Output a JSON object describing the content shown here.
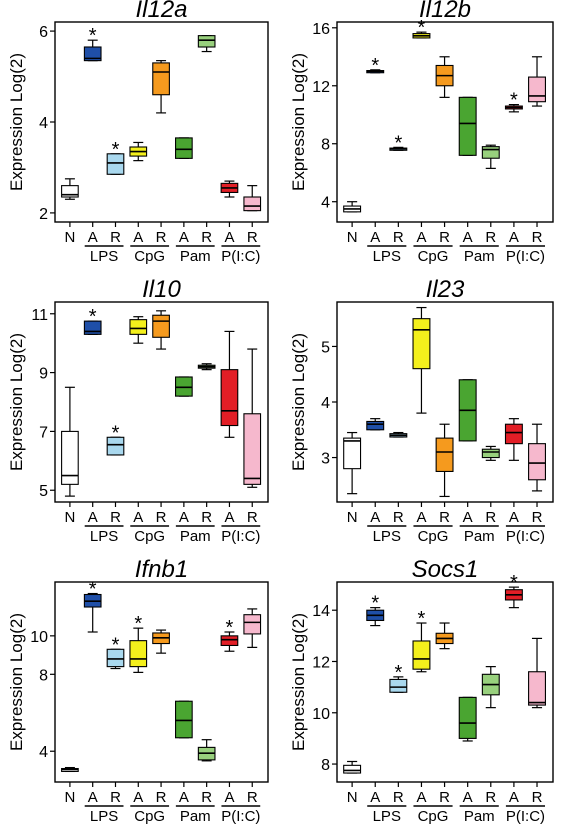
{
  "y_axis_label": "Expression Log(2)",
  "x_axis": {
    "categories": [
      "N",
      "A",
      "R",
      "A",
      "R",
      "A",
      "R",
      "A",
      "R"
    ],
    "groups": [
      "LPS",
      "CpG",
      "Pam",
      "P(I:C)"
    ]
  },
  "colors": {
    "N": "#ffffff",
    "LPS_A": "#1f4fa8",
    "LPS_R": "#a9d8ee",
    "CpG_A": "#f4f01c",
    "CpG_R": "#f59a1e",
    "Pam_A": "#4aa531",
    "Pam_R": "#98d07d",
    "PIC_A": "#e21e26",
    "PIC_R": "#f6b8cd"
  },
  "chart_data": [
    {
      "type": "box",
      "title": "Il12a",
      "ylabel": "Expression Log(2)",
      "yticks": [
        2,
        4,
        6
      ],
      "ylim": [
        1.8,
        6.2
      ],
      "categories": [
        "N",
        "LPS A",
        "LPS R",
        "CpG A",
        "CpG R",
        "Pam A",
        "Pam R",
        "P(I:C) A",
        "P(I:C) R"
      ],
      "boxes": [
        {
          "min": 2.3,
          "q1": 2.35,
          "median": 2.4,
          "q3": 2.6,
          "max": 2.75
        },
        {
          "min": 5.35,
          "q1": 5.35,
          "median": 5.4,
          "q3": 5.65,
          "max": 5.8
        },
        {
          "min": 2.85,
          "q1": 2.85,
          "median": 3.1,
          "q3": 3.3,
          "max": 3.3
        },
        {
          "min": 3.15,
          "q1": 3.25,
          "median": 3.35,
          "q3": 3.45,
          "max": 3.55
        },
        {
          "min": 4.2,
          "q1": 4.6,
          "median": 5.1,
          "q3": 5.3,
          "max": 5.35
        },
        {
          "min": 3.2,
          "q1": 3.2,
          "median": 3.4,
          "q3": 3.65,
          "max": 3.65
        },
        {
          "min": 5.55,
          "q1": 5.65,
          "median": 5.8,
          "q3": 5.9,
          "max": 5.9
        },
        {
          "min": 2.35,
          "q1": 2.45,
          "median": 2.55,
          "q3": 2.65,
          "max": 2.7
        },
        {
          "min": 2.05,
          "q1": 2.05,
          "median": 2.15,
          "q3": 2.35,
          "max": 2.6
        }
      ],
      "significant": [
        "LPS A",
        "LPS R"
      ]
    },
    {
      "type": "box",
      "title": "Il12b",
      "ylabel": "Expression Log(2)",
      "yticks": [
        4,
        8,
        12,
        16
      ],
      "ylim": [
        2.6,
        16.4
      ],
      "categories": [
        "N",
        "LPS A",
        "LPS R",
        "CpG A",
        "CpG R",
        "Pam A",
        "Pam R",
        "P(I:C) A",
        "P(I:C) R"
      ],
      "boxes": [
        {
          "min": 3.3,
          "q1": 3.3,
          "median": 3.5,
          "q3": 3.7,
          "max": 4.0
        },
        {
          "min": 12.9,
          "q1": 12.9,
          "median": 13.0,
          "q3": 13.05,
          "max": 13.1
        },
        {
          "min": 7.55,
          "q1": 7.55,
          "median": 7.65,
          "q3": 7.7,
          "max": 7.75
        },
        {
          "min": 15.3,
          "q1": 15.3,
          "median": 15.45,
          "q3": 15.6,
          "max": 15.7
        },
        {
          "min": 11.2,
          "q1": 12.0,
          "median": 12.7,
          "q3": 13.4,
          "max": 14.0
        },
        {
          "min": 7.2,
          "q1": 7.2,
          "median": 9.4,
          "q3": 11.2,
          "max": 11.2
        },
        {
          "min": 6.3,
          "q1": 7.0,
          "median": 7.6,
          "q3": 7.8,
          "max": 7.9
        },
        {
          "min": 10.2,
          "q1": 10.4,
          "median": 10.5,
          "q3": 10.6,
          "max": 10.7
        },
        {
          "min": 10.6,
          "q1": 10.9,
          "median": 11.3,
          "q3": 12.6,
          "max": 14.0
        }
      ],
      "significant": [
        "LPS A",
        "LPS R",
        "CpG A",
        "P(I:C) A"
      ]
    },
    {
      "type": "box",
      "title": "Il10",
      "ylabel": "Expression Log(2)",
      "yticks": [
        5,
        7,
        9,
        11
      ],
      "ylim": [
        4.6,
        11.4
      ],
      "categories": [
        "N",
        "LPS A",
        "LPS R",
        "CpG A",
        "CpG R",
        "Pam A",
        "Pam R",
        "P(I:C) A",
        "P(I:C) R"
      ],
      "boxes": [
        {
          "min": 4.8,
          "q1": 5.2,
          "median": 5.5,
          "q3": 7.0,
          "max": 8.5
        },
        {
          "min": 10.3,
          "q1": 10.3,
          "median": 10.4,
          "q3": 10.75,
          "max": 10.75
        },
        {
          "min": 6.2,
          "q1": 6.2,
          "median": 6.55,
          "q3": 6.8,
          "max": 6.8
        },
        {
          "min": 10.0,
          "q1": 10.3,
          "median": 10.5,
          "q3": 10.8,
          "max": 10.9
        },
        {
          "min": 9.8,
          "q1": 10.2,
          "median": 10.75,
          "q3": 10.95,
          "max": 11.1
        },
        {
          "min": 8.2,
          "q1": 8.2,
          "median": 8.5,
          "q3": 8.85,
          "max": 8.85
        },
        {
          "min": 9.1,
          "q1": 9.15,
          "median": 9.2,
          "q3": 9.25,
          "max": 9.3
        },
        {
          "min": 6.8,
          "q1": 7.2,
          "median": 7.7,
          "q3": 9.1,
          "max": 10.4
        },
        {
          "min": 5.1,
          "q1": 5.2,
          "median": 5.4,
          "q3": 7.6,
          "max": 9.8
        }
      ],
      "significant": [
        "LPS A",
        "LPS R"
      ]
    },
    {
      "type": "box",
      "title": "Il23",
      "ylabel": "Expression Log(2)",
      "yticks": [
        3,
        4,
        5
      ],
      "ylim": [
        2.2,
        5.8
      ],
      "categories": [
        "N",
        "LPS A",
        "LPS R",
        "CpG A",
        "CpG R",
        "Pam A",
        "Pam R",
        "P(I:C) A",
        "P(I:C) R"
      ],
      "boxes": [
        {
          "min": 2.35,
          "q1": 2.8,
          "median": 3.3,
          "q3": 3.35,
          "max": 3.45
        },
        {
          "min": 3.5,
          "q1": 3.5,
          "median": 3.6,
          "q3": 3.65,
          "max": 3.7
        },
        {
          "min": 3.37,
          "q1": 3.37,
          "median": 3.4,
          "q3": 3.43,
          "max": 3.45
        },
        {
          "min": 3.8,
          "q1": 4.6,
          "median": 5.3,
          "q3": 5.5,
          "max": 5.7
        },
        {
          "min": 2.3,
          "q1": 2.75,
          "median": 3.1,
          "q3": 3.35,
          "max": 3.6
        },
        {
          "min": 3.3,
          "q1": 3.3,
          "median": 3.85,
          "q3": 4.4,
          "max": 4.4
        },
        {
          "min": 2.95,
          "q1": 3.0,
          "median": 3.1,
          "q3": 3.15,
          "max": 3.2
        },
        {
          "min": 2.95,
          "q1": 3.25,
          "median": 3.45,
          "q3": 3.6,
          "max": 3.7
        },
        {
          "min": 2.4,
          "q1": 2.6,
          "median": 2.9,
          "q3": 3.25,
          "max": 3.6
        }
      ],
      "significant": []
    },
    {
      "type": "box",
      "title": "Ifnb1",
      "ylabel": "Expression Log(2)",
      "yticks": [
        4,
        8,
        10
      ],
      "ylim": [
        2.4,
        12.8
      ],
      "categories": [
        "N",
        "LPS A",
        "LPS R",
        "CpG A",
        "CpG R",
        "Pam A",
        "Pam R",
        "P(I:C) A",
        "P(I:C) R"
      ],
      "boxes": [
        {
          "min": 2.95,
          "q1": 2.95,
          "median": 3.05,
          "q3": 3.1,
          "max": 3.15
        },
        {
          "min": 10.2,
          "q1": 11.5,
          "median": 11.8,
          "q3": 12.15,
          "max": 12.2
        },
        {
          "min": 8.3,
          "q1": 8.4,
          "median": 8.8,
          "q3": 9.3,
          "max": 9.3
        },
        {
          "min": 8.1,
          "q1": 8.4,
          "median": 8.8,
          "q3": 9.75,
          "max": 10.4
        },
        {
          "min": 9.1,
          "q1": 9.6,
          "median": 9.9,
          "q3": 10.15,
          "max": 10.3
        },
        {
          "min": 4.7,
          "q1": 4.7,
          "median": 5.6,
          "q3": 6.6,
          "max": 6.6
        },
        {
          "min": 3.5,
          "q1": 3.55,
          "median": 3.9,
          "q3": 4.2,
          "max": 4.6
        },
        {
          "min": 9.2,
          "q1": 9.5,
          "median": 9.8,
          "q3": 10.0,
          "max": 10.2
        },
        {
          "min": 9.4,
          "q1": 10.1,
          "median": 10.7,
          "q3": 11.1,
          "max": 11.4
        }
      ],
      "significant": [
        "LPS A",
        "LPS R",
        "CpG A",
        "P(I:C) A"
      ]
    },
    {
      "type": "box",
      "title": "Socs1",
      "ylabel": "Expression Log(2)",
      "yticks": [
        8,
        10,
        12,
        14
      ],
      "ylim": [
        7.3,
        15.1
      ],
      "categories": [
        "N",
        "LPS A",
        "LPS R",
        "CpG A",
        "CpG R",
        "Pam A",
        "Pam R",
        "P(I:C) A",
        "P(I:C) R"
      ],
      "boxes": [
        {
          "min": 7.65,
          "q1": 7.65,
          "median": 7.75,
          "q3": 7.95,
          "max": 8.1
        },
        {
          "min": 13.4,
          "q1": 13.6,
          "median": 13.8,
          "q3": 14.0,
          "max": 14.1
        },
        {
          "min": 10.8,
          "q1": 10.8,
          "median": 11.0,
          "q3": 11.3,
          "max": 11.4
        },
        {
          "min": 11.6,
          "q1": 11.7,
          "median": 12.1,
          "q3": 12.8,
          "max": 13.5
        },
        {
          "min": 12.5,
          "q1": 12.7,
          "median": 12.9,
          "q3": 13.1,
          "max": 13.5
        },
        {
          "min": 8.9,
          "q1": 9.0,
          "median": 9.6,
          "q3": 10.6,
          "max": 10.6
        },
        {
          "min": 10.2,
          "q1": 10.7,
          "median": 11.1,
          "q3": 11.5,
          "max": 11.8
        },
        {
          "min": 14.1,
          "q1": 14.4,
          "median": 14.6,
          "q3": 14.8,
          "max": 14.9
        },
        {
          "min": 10.2,
          "q1": 10.3,
          "median": 10.4,
          "q3": 11.6,
          "max": 12.9
        }
      ],
      "significant": [
        "LPS A",
        "LPS R",
        "CpG A",
        "P(I:C) A"
      ]
    }
  ]
}
